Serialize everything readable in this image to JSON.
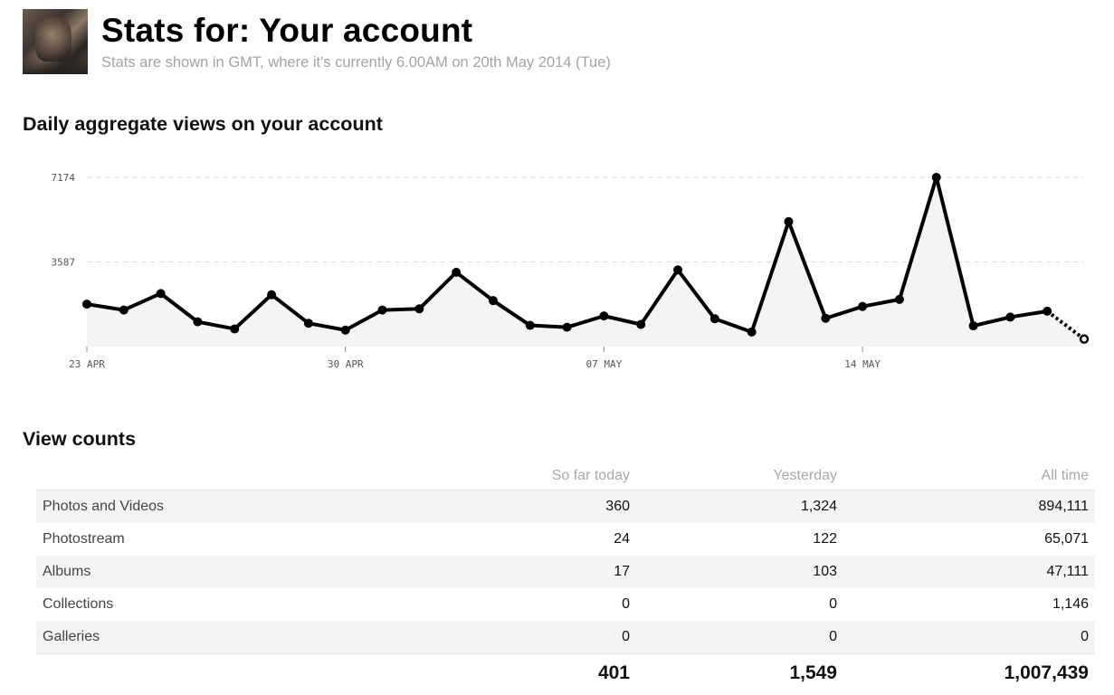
{
  "header": {
    "title": "Stats for: Your account",
    "subtitle": "Stats are shown in GMT, where it's currently 6.00AM on 20th May 2014 (Tue)"
  },
  "chart_section": {
    "title": "Daily aggregate views on your account"
  },
  "chart_data": {
    "type": "line",
    "title": "",
    "xlabel": "",
    "ylabel": "",
    "ylim": [
      0,
      7174
    ],
    "yticks": [
      3587,
      7174
    ],
    "ytick_labels": [
      "3587",
      "7174"
    ],
    "xtick_labels": [
      "23 APR",
      "30 APR",
      "07 MAY",
      "14 MAY"
    ],
    "xtick_index": [
      0,
      7,
      14,
      21
    ],
    "grid": true,
    "series": [
      {
        "values": [
          1800,
          1550,
          2250,
          1050,
          750,
          2200,
          990,
          700,
          1550,
          1600,
          3150,
          1950,
          900,
          820,
          1300,
          940,
          3250,
          1180,
          620,
          5300,
          1200,
          1700,
          2000,
          7174,
          880,
          1250,
          1500,
          320
        ],
        "partial_last": true
      }
    ],
    "colors": {
      "line": "#000000",
      "fill": "#f4f4f4",
      "grid": "#dcdcdc",
      "axis_text": "#555555"
    }
  },
  "counts_section": {
    "title": "View counts",
    "columns": [
      "",
      "So far today",
      "Yesterday",
      "All time"
    ],
    "rows": [
      {
        "label": "Photos and Videos",
        "today": "360",
        "yesterday": "1,324",
        "all_time": "894,111"
      },
      {
        "label": "Photostream",
        "today": "24",
        "yesterday": "122",
        "all_time": "65,071"
      },
      {
        "label": "Albums",
        "today": "17",
        "yesterday": "103",
        "all_time": "47,111"
      },
      {
        "label": "Collections",
        "today": "0",
        "yesterday": "0",
        "all_time": "1,146"
      },
      {
        "label": "Galleries",
        "today": "0",
        "yesterday": "0",
        "all_time": "0"
      }
    ],
    "totals": {
      "today": "401",
      "yesterday": "1,549",
      "all_time": "1,007,439"
    }
  }
}
